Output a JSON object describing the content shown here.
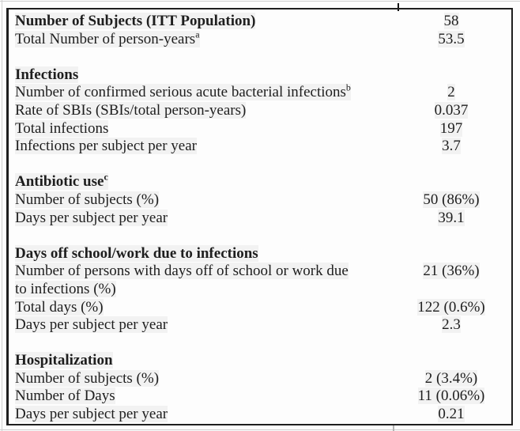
{
  "colors": {
    "table_border": "#1f1f1f",
    "text": "#1e1e1e",
    "scan_edge_line": "#cfcfcf",
    "background": "#fdfdfd"
  },
  "table": {
    "sections": [
      {
        "rows": [
          {
            "label": "Number of Subjects (ITT Population)",
            "value": "58"
          },
          {
            "label": "Total Number of person-years",
            "sup": "a",
            "value": "53.5"
          }
        ]
      },
      {
        "header": "Infections",
        "rows": [
          {
            "label": "Number of confirmed serious acute bacterial infections",
            "sup": "b",
            "value": "2"
          },
          {
            "label": "Rate of SBIs (SBIs/total person-years)",
            "value": "0.037"
          },
          {
            "label": "Total infections",
            "value": "197"
          },
          {
            "label": "Infections per subject per year",
            "value": "3.7"
          }
        ]
      },
      {
        "header": "Antibiotic use",
        "header_sup": "c",
        "rows": [
          {
            "label": "Number of subjects (%)",
            "value": "50 (86%)"
          },
          {
            "label": "Days per subject per year",
            "value": "39.1"
          }
        ]
      },
      {
        "header": "Days off school/work due to infections",
        "rows": [
          {
            "label": "Number of persons with days off of school or work due\nto infections (%)",
            "value": "21 (36%)"
          },
          {
            "label": "Total days (%)",
            "value": "122 (0.6%)"
          },
          {
            "label": "Days per subject per year",
            "value": "2.3"
          }
        ]
      },
      {
        "header": "Hospitalization",
        "rows": [
          {
            "label": "Number of subjects (%)",
            "value": "2 (3.4%)"
          },
          {
            "label": "Number of Days",
            "value": "11 (0.06%)"
          },
          {
            "label": "Days per subject per year",
            "value": "0.21"
          }
        ]
      }
    ]
  }
}
